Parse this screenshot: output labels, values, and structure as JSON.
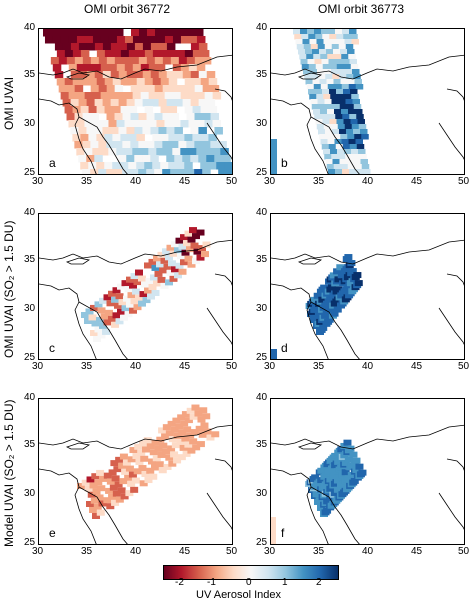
{
  "columns": [
    "OMI orbit 36772",
    "OMI orbit 36773"
  ],
  "rows": [
    {
      "label": "OMI UVAI"
    },
    {
      "label": "OMI UVAI (SO₂ > 1.5 DU)"
    },
    {
      "label": "Model UVAI (SO₂ > 1.5 DU)"
    }
  ],
  "panels": [
    {
      "letter": "a",
      "x_ticks": [
        "30",
        "35",
        "40",
        "45",
        "50"
      ],
      "y_ticks": [
        "40",
        "35",
        "30",
        "25"
      ]
    },
    {
      "letter": "b",
      "x_ticks": [
        "30",
        "35",
        "40",
        "45",
        "50"
      ],
      "y_ticks": [
        "40",
        "35",
        "30",
        "25"
      ]
    },
    {
      "letter": "c",
      "x_ticks": [
        "30",
        "35",
        "40",
        "45",
        "50"
      ],
      "y_ticks": [
        "40",
        "35",
        "30",
        "25"
      ]
    },
    {
      "letter": "d",
      "x_ticks": [
        "30",
        "35",
        "40",
        "45",
        "50"
      ],
      "y_ticks": [
        "40",
        "35",
        "30",
        "25"
      ]
    },
    {
      "letter": "e",
      "x_ticks": [
        "30",
        "35",
        "40",
        "45",
        "50"
      ],
      "y_ticks": [
        "40",
        "35",
        "30",
        "25"
      ]
    },
    {
      "letter": "f",
      "x_ticks": [
        "30",
        "35",
        "40",
        "45",
        "50"
      ],
      "y_ticks": [
        "40",
        "35",
        "30",
        "25"
      ]
    }
  ],
  "colorbar": {
    "ticks": [
      "-2",
      "-1",
      "0",
      "1",
      "2"
    ],
    "title": "UV Aerosol Index",
    "colors": [
      "#67001f",
      "#b2182b",
      "#d6604d",
      "#f4a582",
      "#fddbc7",
      "#f7f7f7",
      "#d1e5f0",
      "#92c5de",
      "#4393c3",
      "#2166ac",
      "#08306b"
    ]
  }
}
